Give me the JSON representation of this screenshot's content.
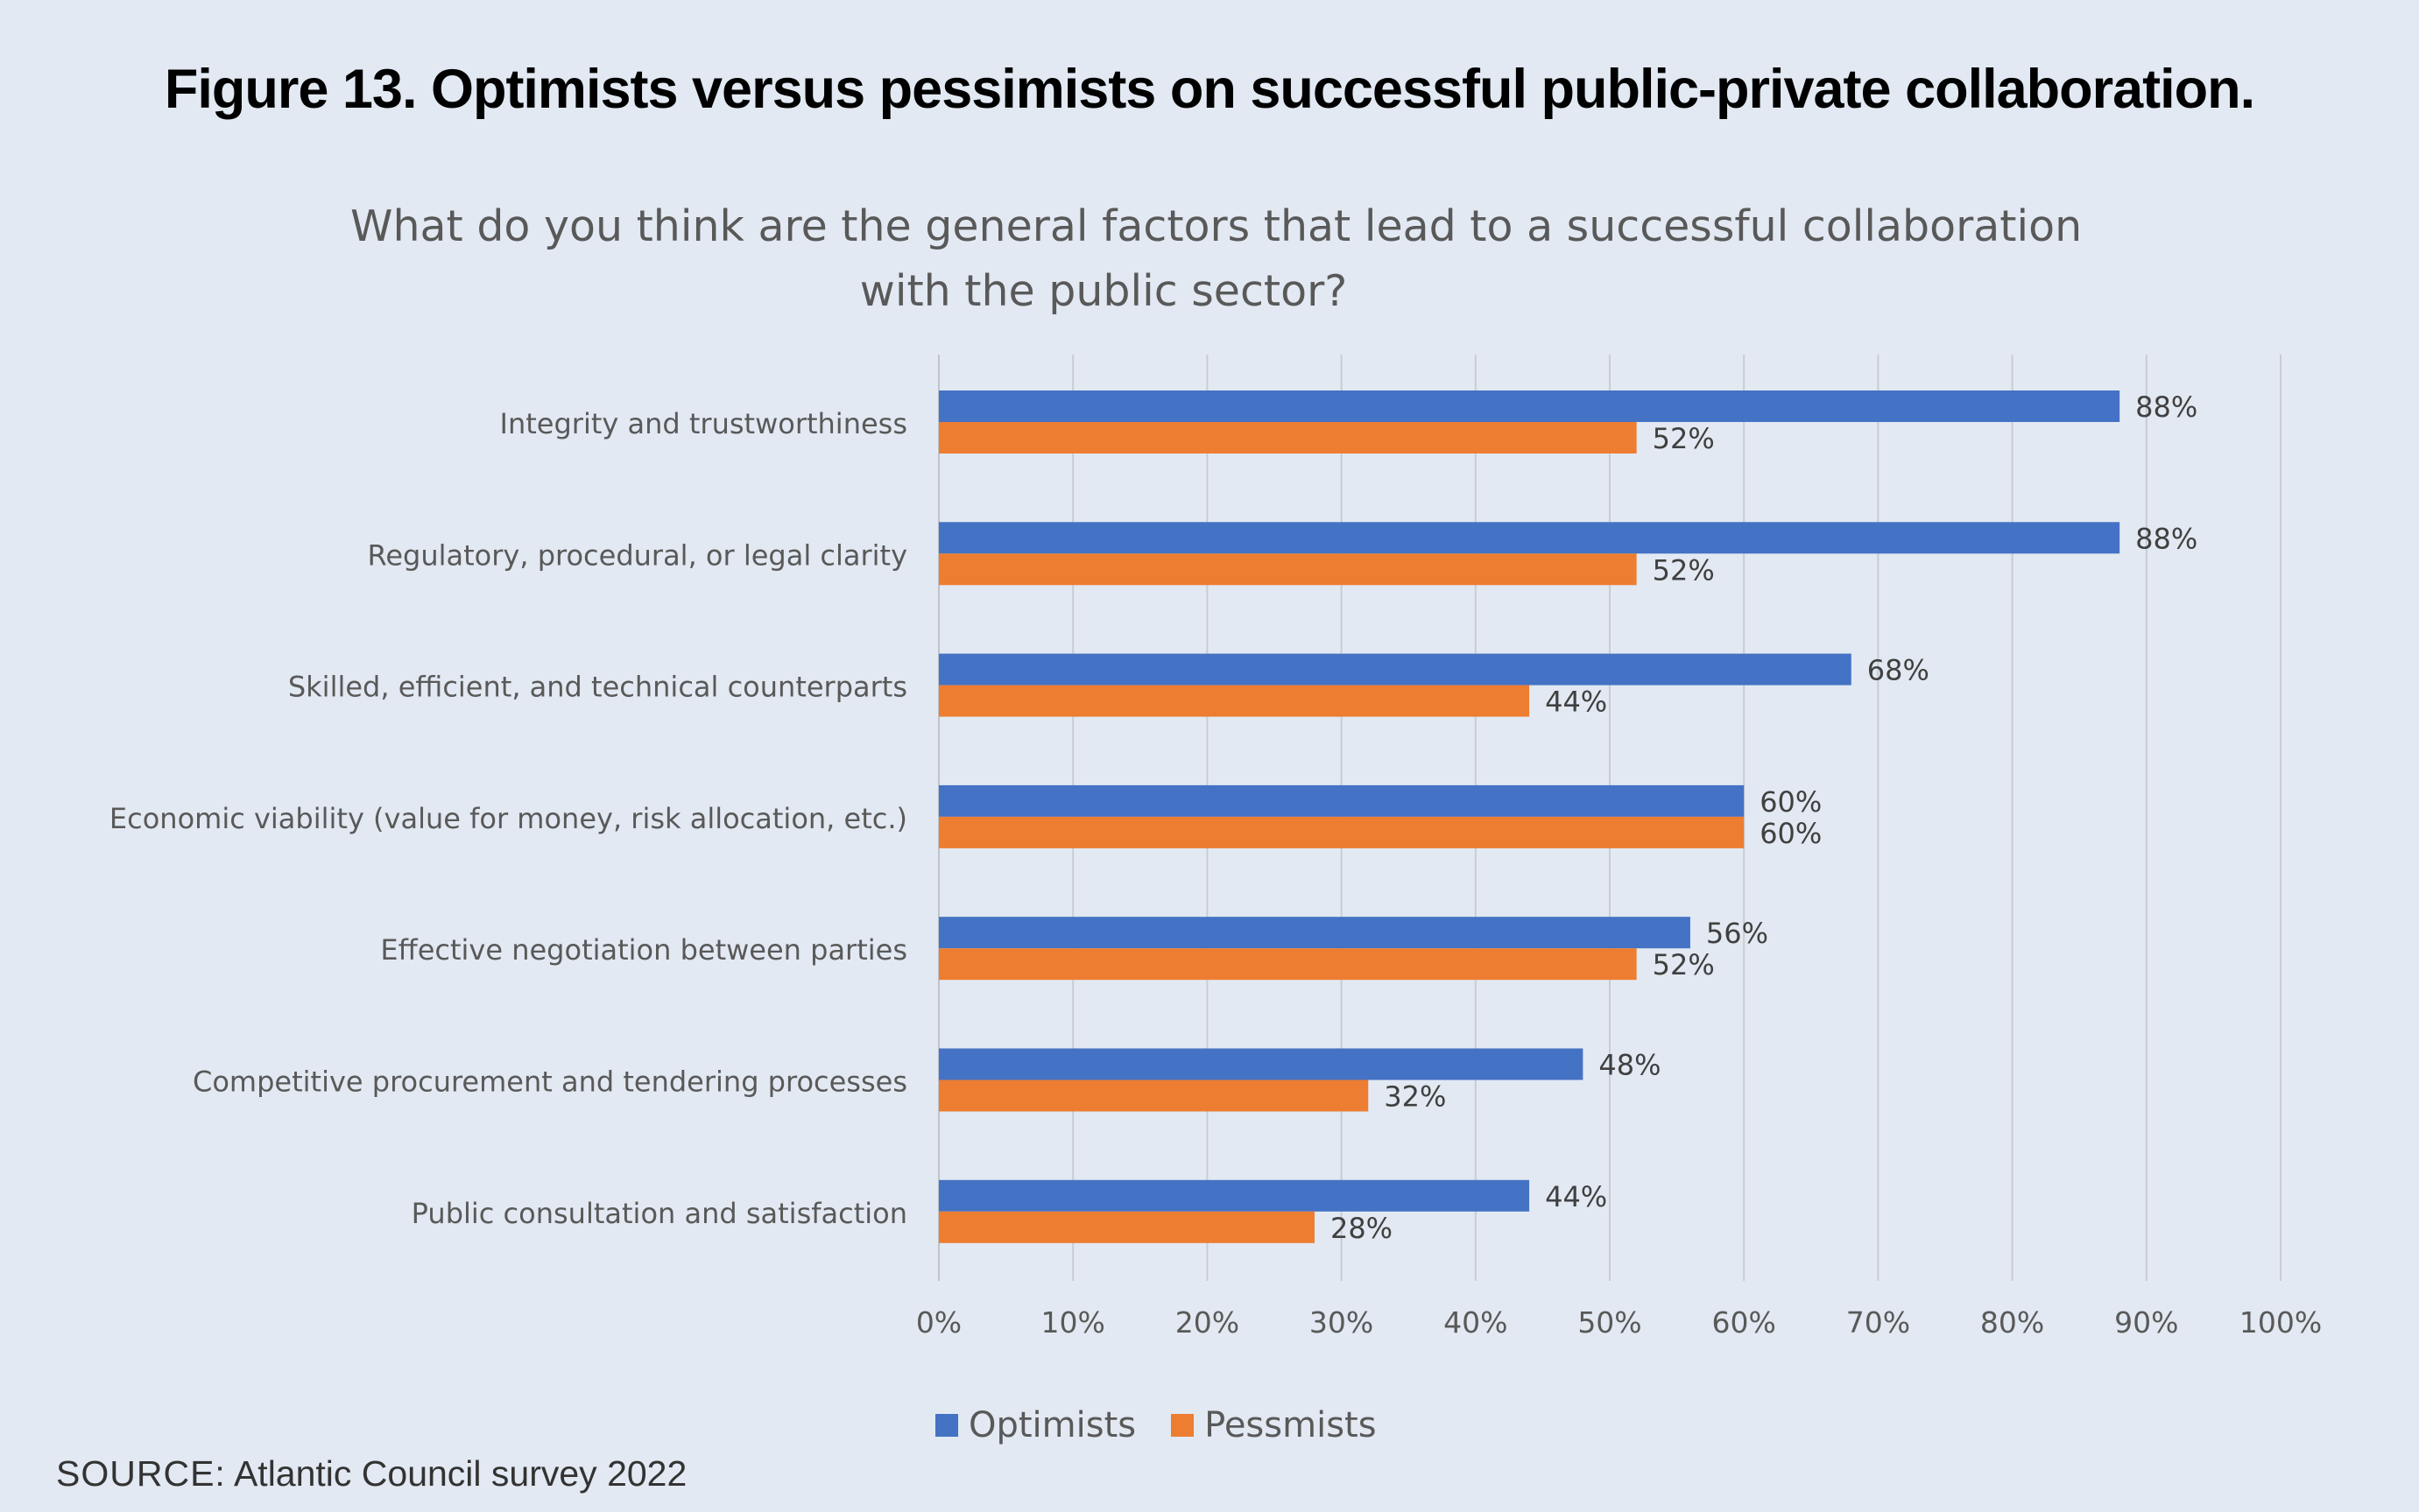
{
  "figure_title": "Figure 13. Optimists versus pessimists on successful public-private collaboration.",
  "source": {
    "label": "SOURCE:",
    "text": "Atlantic Council survey 2022"
  },
  "colors": {
    "background": "#e2e9f2",
    "optimists": "#4472c4",
    "pessimists": "#ed7d31",
    "gridline": "#c9cdd2",
    "axis_text": "#595959"
  },
  "chart_data": {
    "type": "bar",
    "orientation": "horizontal",
    "title_lines": [
      "What do you think are the general factors that lead to a successful collaboration",
      "with the public sector?"
    ],
    "categories": [
      "Integrity and trustworthiness",
      "Regulatory, procedural, or legal clarity",
      "Skilled, efficient, and technical counterparts",
      "Economic viability (value for money, risk allocation, etc.)",
      "Effective negotiation between parties",
      "Competitive procurement and tendering processes",
      "Public consultation and satisfaction"
    ],
    "series": [
      {
        "name": "Optimists",
        "color": "#4472c4",
        "values": [
          88,
          88,
          68,
          60,
          56,
          48,
          44
        ]
      },
      {
        "name": "Pessmists",
        "color": "#ed7d31",
        "values": [
          52,
          52,
          44,
          60,
          52,
          32,
          28
        ]
      }
    ],
    "value_suffix": "%",
    "xlim": [
      0,
      100
    ],
    "x_ticks": [
      0,
      10,
      20,
      30,
      40,
      50,
      60,
      70,
      80,
      90,
      100
    ],
    "x_tick_labels": [
      "0%",
      "10%",
      "20%",
      "30%",
      "40%",
      "50%",
      "60%",
      "70%",
      "80%",
      "90%",
      "100%"
    ],
    "grid": "vertical",
    "legend_position": "bottom"
  }
}
